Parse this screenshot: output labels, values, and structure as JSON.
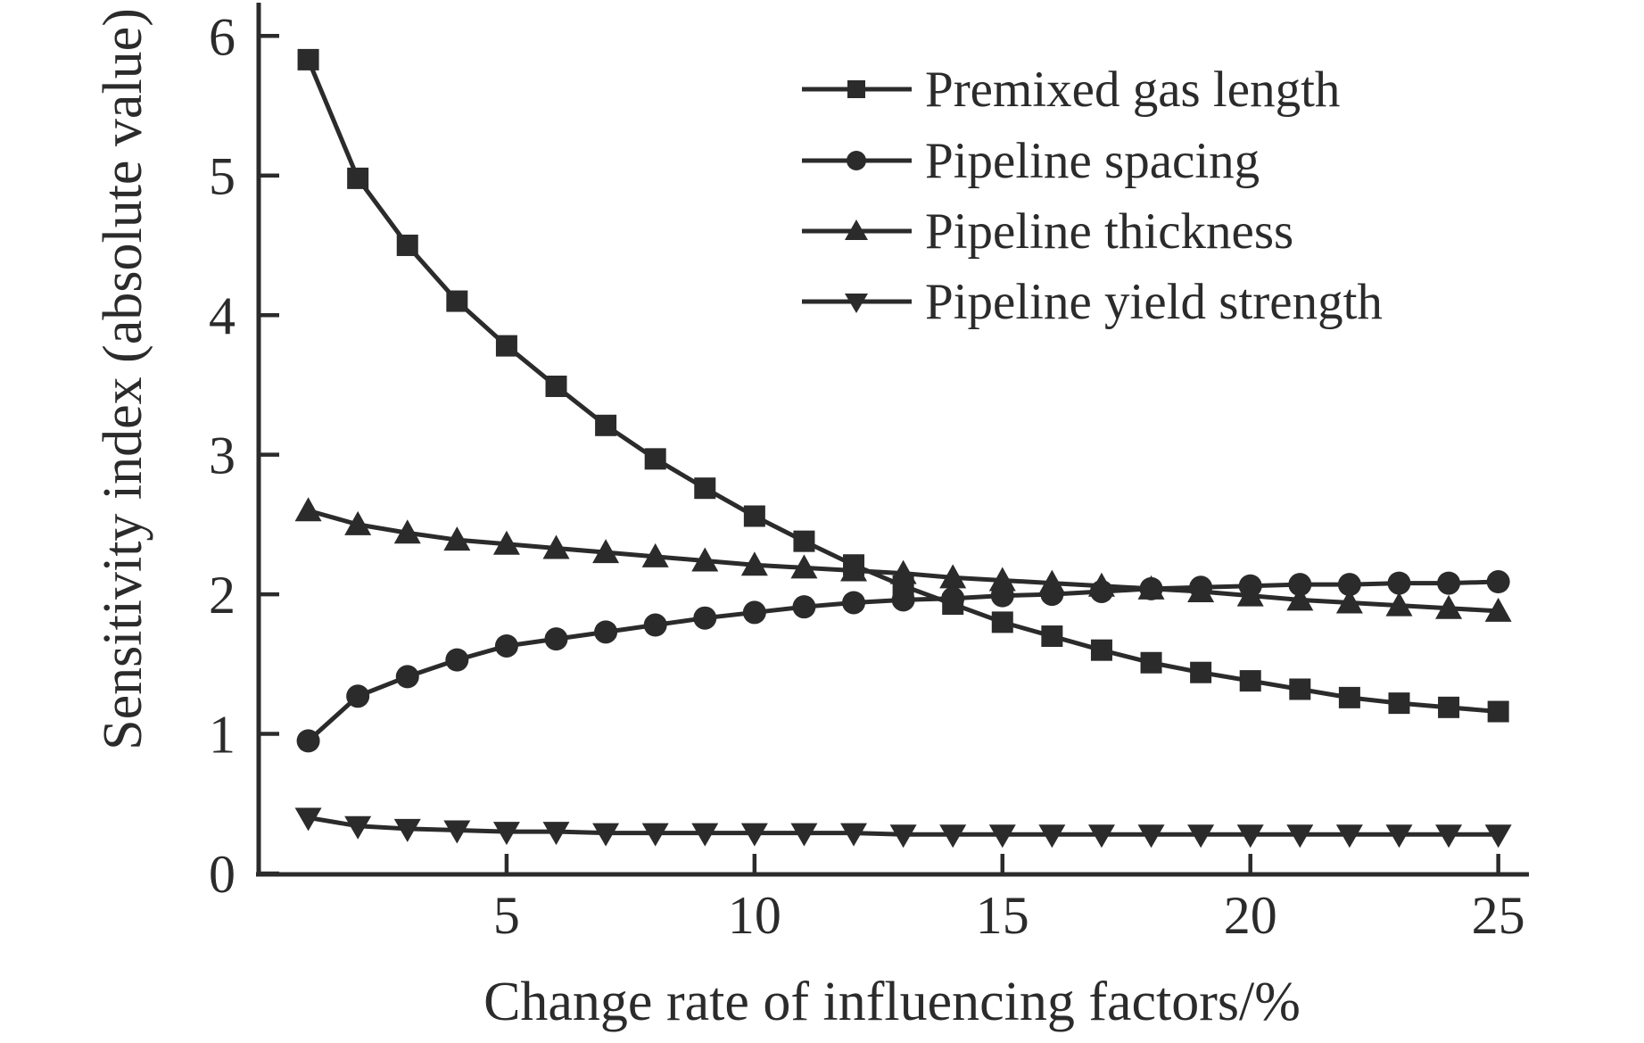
{
  "figure": {
    "background": "#ffffff",
    "ink_color": "#2b2b2b"
  },
  "chart_data": {
    "type": "line",
    "title": "",
    "xlabel": "Change rate of influencing factors/%",
    "ylabel": "Sensitivity index (absolute value)",
    "grid": false,
    "legend_position": "top-right-inside",
    "xlim": [
      0,
      25.6
    ],
    "ylim": [
      0,
      6.2
    ],
    "x_ticks": [
      5,
      10,
      15,
      20,
      25
    ],
    "y_ticks": [
      0,
      1,
      2,
      3,
      4,
      5,
      6
    ],
    "x": [
      1,
      2,
      3,
      4,
      5,
      6,
      7,
      8,
      9,
      10,
      11,
      12,
      13,
      14,
      15,
      16,
      17,
      18,
      19,
      20,
      21,
      22,
      23,
      24,
      25
    ],
    "series": [
      {
        "name": "Premixed gas length",
        "marker": "square",
        "values": [
          5.83,
          4.98,
          4.5,
          4.1,
          3.78,
          3.49,
          3.21,
          2.97,
          2.76,
          2.56,
          2.38,
          2.21,
          2.06,
          1.93,
          1.8,
          1.7,
          1.6,
          1.51,
          1.44,
          1.38,
          1.32,
          1.26,
          1.22,
          1.19,
          1.16
        ]
      },
      {
        "name": "Pipeline spacing",
        "marker": "circle",
        "values": [
          0.95,
          1.27,
          1.41,
          1.53,
          1.63,
          1.68,
          1.73,
          1.78,
          1.83,
          1.87,
          1.91,
          1.94,
          1.96,
          1.97,
          1.99,
          2.0,
          2.02,
          2.04,
          2.05,
          2.06,
          2.07,
          2.07,
          2.08,
          2.08,
          2.09
        ]
      },
      {
        "name": "Pipeline thickness",
        "marker": "triangle-up",
        "values": [
          2.6,
          2.5,
          2.44,
          2.39,
          2.36,
          2.33,
          2.3,
          2.27,
          2.24,
          2.21,
          2.19,
          2.17,
          2.15,
          2.12,
          2.1,
          2.08,
          2.06,
          2.04,
          2.02,
          1.99,
          1.96,
          1.94,
          1.92,
          1.9,
          1.88
        ]
      },
      {
        "name": "Pipeline yield strength",
        "marker": "triangle-down",
        "values": [
          0.4,
          0.34,
          0.32,
          0.31,
          0.3,
          0.3,
          0.29,
          0.29,
          0.29,
          0.29,
          0.29,
          0.29,
          0.28,
          0.28,
          0.28,
          0.28,
          0.28,
          0.28,
          0.28,
          0.28,
          0.28,
          0.28,
          0.28,
          0.28,
          0.28
        ]
      }
    ]
  }
}
